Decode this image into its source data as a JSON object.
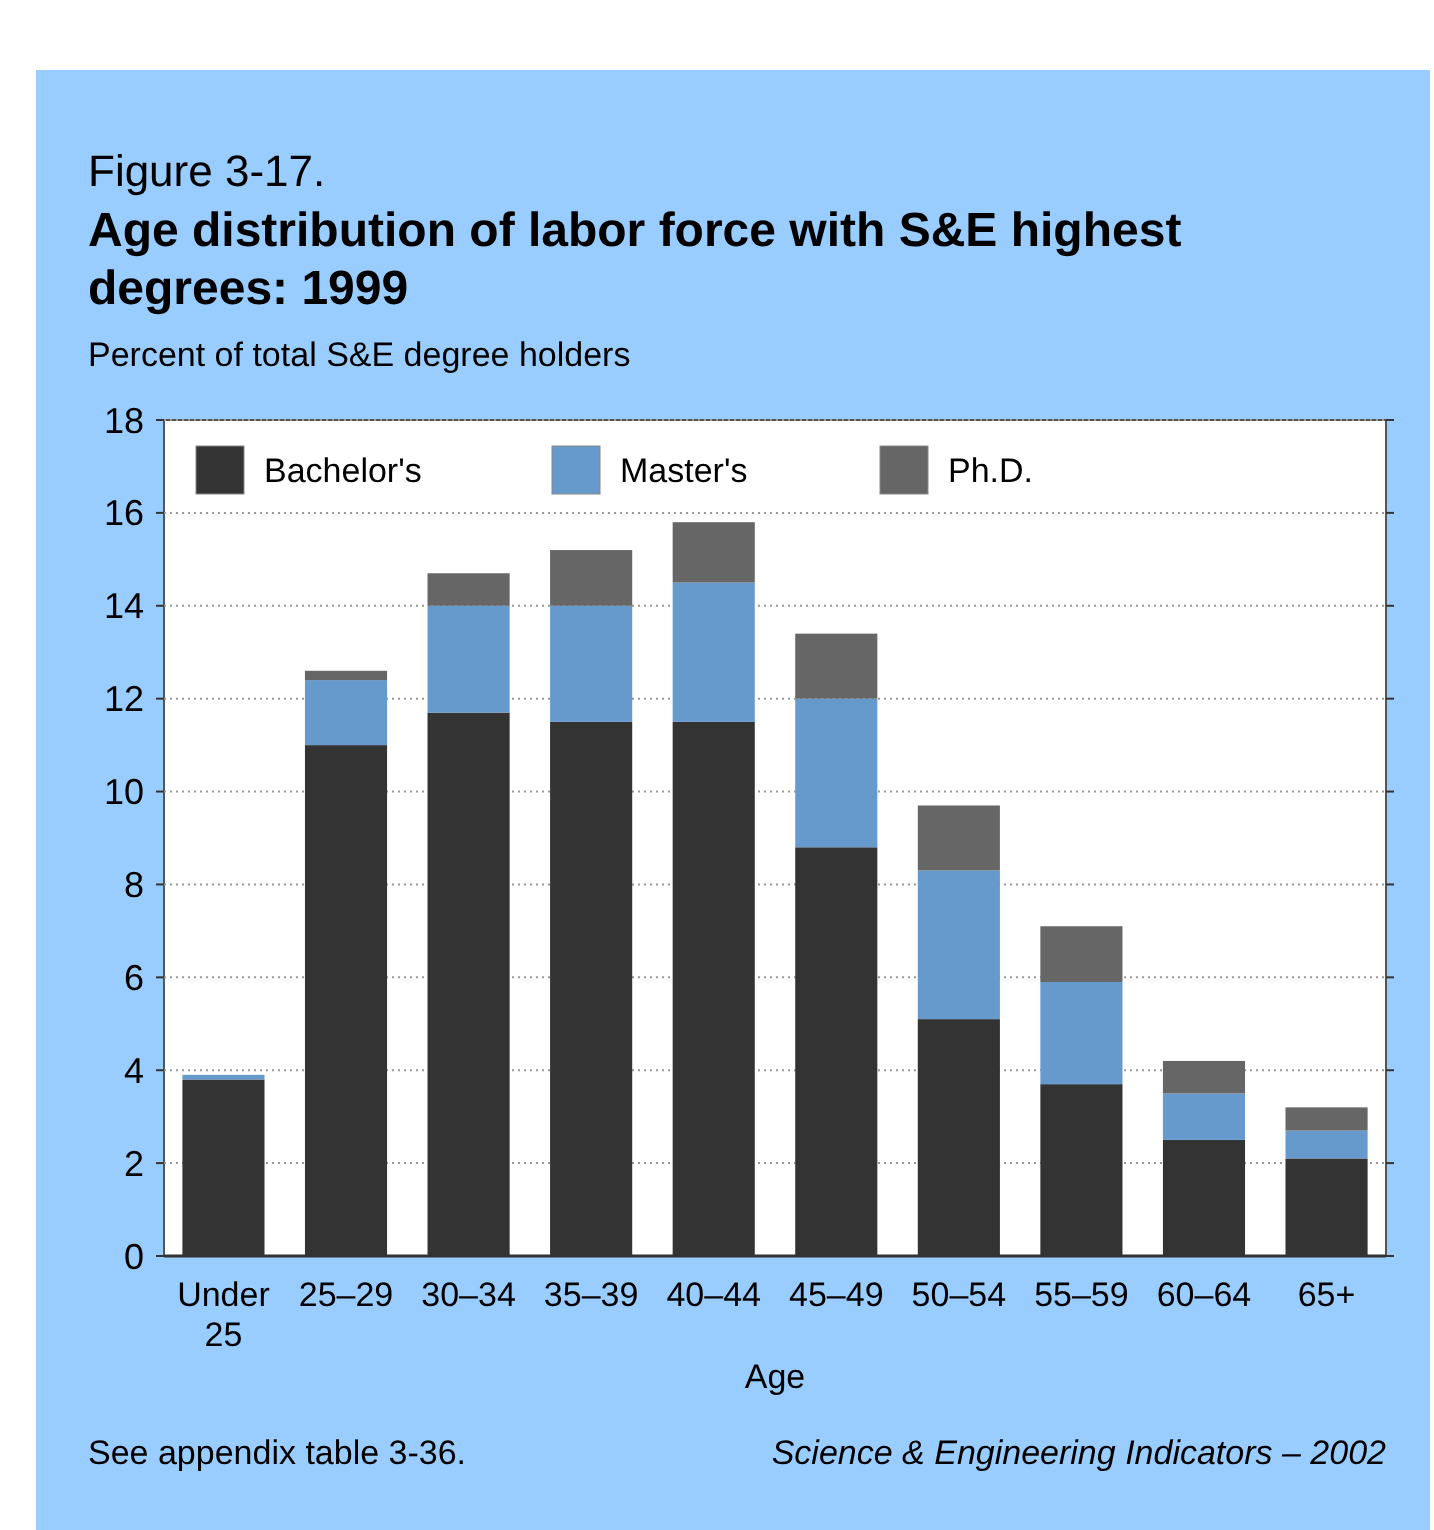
{
  "chart_data": {
    "type": "bar",
    "title": "Figure 3-17.",
    "subtitle": "Age distribution of labor force with S&E highest degrees: 1999",
    "ylabel": "Percent of total S&E degree holders",
    "xlabel": "Age",
    "categories": [
      "Under 25",
      "25–29",
      "30–34",
      "35–39",
      "40–44",
      "45–49",
      "50–54",
      "55–59",
      "60–64",
      "65+"
    ],
    "series": [
      {
        "name": "Bachelor's",
        "color": "#333333",
        "values": [
          3.8,
          11.0,
          11.7,
          11.5,
          11.5,
          8.8,
          5.1,
          3.7,
          2.5,
          2.1
        ]
      },
      {
        "name": "Master's",
        "color": "#6699cc",
        "values": [
          0.1,
          1.4,
          2.3,
          2.5,
          3.0,
          3.2,
          3.2,
          2.2,
          1.0,
          0.6
        ]
      },
      {
        "name": "Ph.D.",
        "color": "#666666",
        "values": [
          0,
          0.2,
          0.7,
          1.2,
          1.3,
          1.4,
          1.4,
          1.2,
          0.7,
          0.5
        ]
      }
    ],
    "stacked": true,
    "ylim": [
      0,
      18
    ],
    "yticks": [
      0,
      2,
      4,
      6,
      8,
      10,
      12,
      14,
      16,
      18
    ],
    "grid": "y",
    "legend": "top left",
    "annotations": [
      "See appendix table 3-36.",
      "Science & Engineering Indicators – 2002"
    ]
  }
}
